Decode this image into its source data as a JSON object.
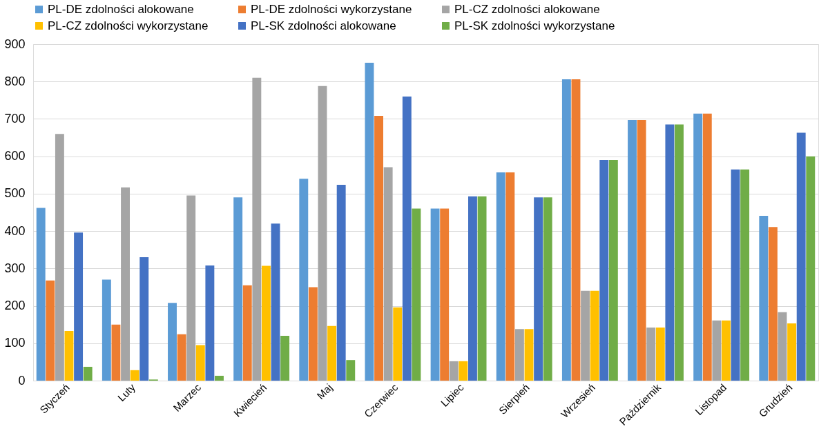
{
  "chart_data": {
    "type": "bar",
    "categories": [
      "Styczeń",
      "Luty",
      "Marzec",
      "Kwiecień",
      "Maj",
      "Czerwiec",
      "Lipiec",
      "Sierpień",
      "Wrzesień",
      "Październik",
      "Listopad",
      "Grudzień"
    ],
    "series": [
      {
        "name": "PL-DE zdolności alokowane",
        "color": "#5b9bd5",
        "values": [
          462,
          270,
          208,
          490,
          540,
          850,
          460,
          557,
          806,
          697,
          714,
          441
        ]
      },
      {
        "name": "PL-DE zdolności wykorzystane",
        "color": "#ed7d31",
        "values": [
          268,
          150,
          124,
          255,
          250,
          708,
          460,
          557,
          806,
          697,
          714,
          411
        ]
      },
      {
        "name": "PL-CZ zdolności alokowane",
        "color": "#a5a5a5",
        "values": [
          660,
          517,
          495,
          810,
          788,
          571,
          52,
          138,
          240,
          142,
          161,
          183
        ]
      },
      {
        "name": "PL-CZ zdolności wykorzystane",
        "color": "#ffc000",
        "values": [
          133,
          28,
          95,
          307,
          146,
          196,
          52,
          138,
          240,
          142,
          161,
          153
        ]
      },
      {
        "name": "PL-SK zdolności alokowane",
        "color": "#4472c4",
        "values": [
          396,
          330,
          308,
          420,
          524,
          760,
          493,
          490,
          590,
          685,
          565,
          663
        ]
      },
      {
        "name": "PL-SK zdolności wykorzystane",
        "color": "#70ad47",
        "values": [
          37,
          3,
          13,
          120,
          55,
          460,
          493,
          490,
          590,
          685,
          565,
          600
        ]
      }
    ],
    "ylim": [
      0,
      900
    ],
    "yticks": [
      0,
      100,
      200,
      300,
      400,
      500,
      600,
      700,
      800,
      900
    ],
    "grid": "y",
    "legend": "top"
  }
}
